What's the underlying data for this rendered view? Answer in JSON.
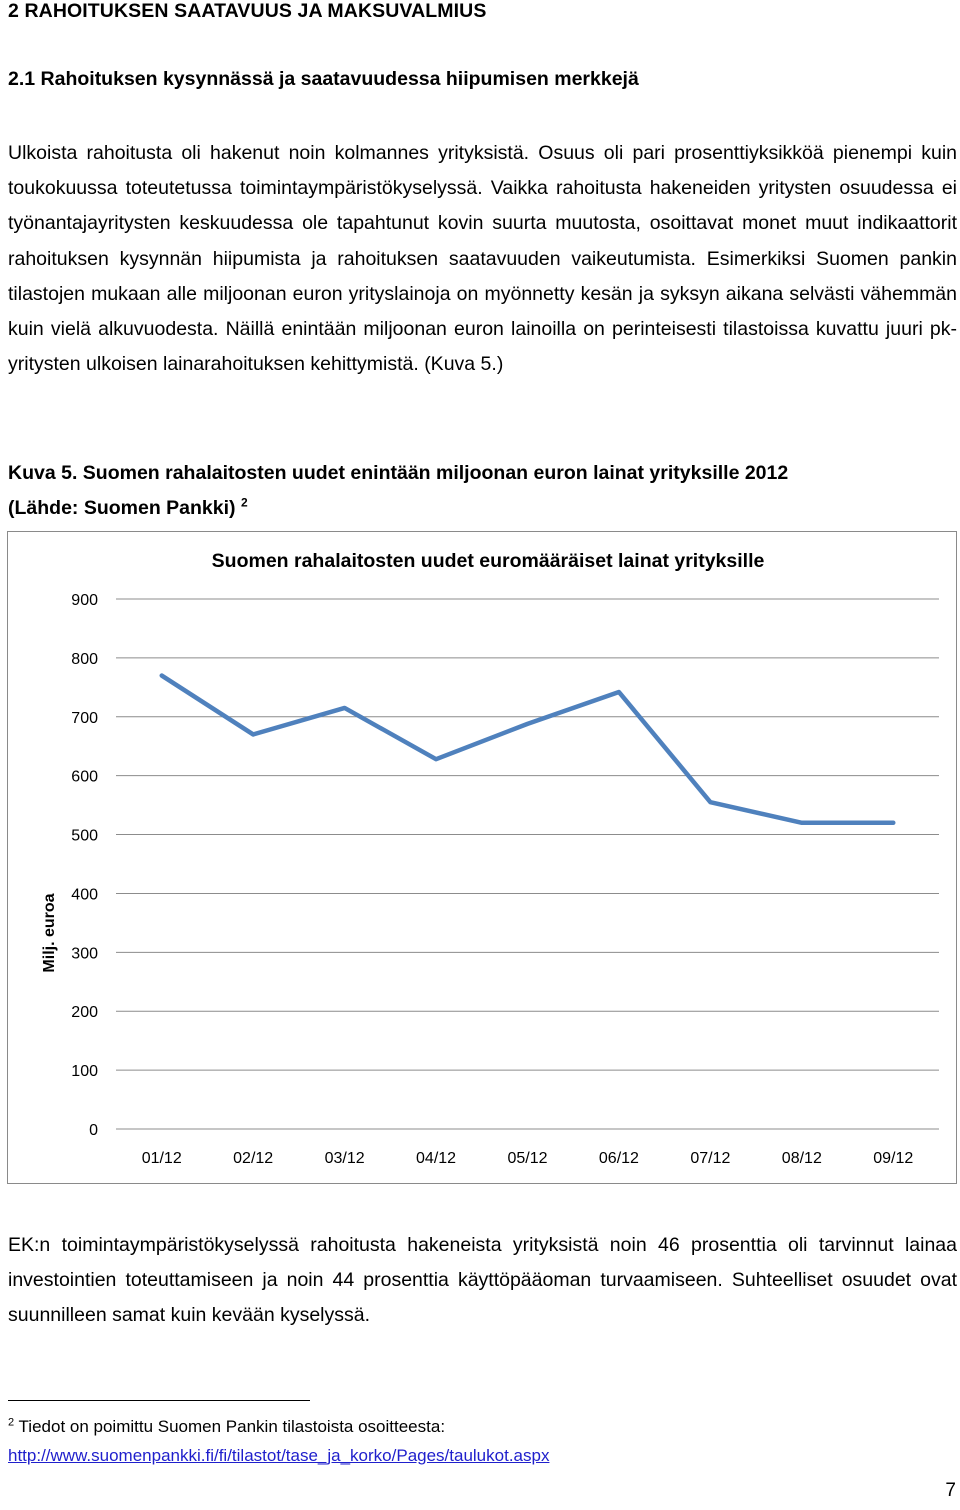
{
  "section_title": "2 RAHOITUKSEN SAATAVUUS JA MAKSUVALMIUS",
  "subsection_title": "2.1 Rahoituksen kysynnässä ja saatavuudessa hiipumisen merkkejä",
  "paragraph_1": "Ulkoista rahoitusta oli hakenut noin kolmannes yrityksistä. Osuus oli pari prosenttiyksikköä pienempi kuin toukokuussa toteutetussa toimintaympäristökyselyssä. Vaikka rahoitusta hakeneiden yritysten osuudessa ei työnantajayritysten keskuudessa ole tapahtunut kovin suurta muutosta, osoittavat monet muut indikaattorit rahoituksen kysynnän hiipumista ja rahoituksen saatavuuden vaikeutumista. Esimerkiksi Suomen pankin tilastojen mukaan alle miljoonan euron yrityslainoja on myönnetty kesän ja syksyn aikana selvästi vähemmän kuin vielä alkuvuodesta. Näillä enintään miljoonan euron lainoilla on perinteisesti tilastoissa kuvattu juuri pk-yritysten ulkoisen lainarahoituksen kehittymistä. (Kuva 5.)",
  "figure_caption": {
    "line1": "Kuva 5. Suomen rahalaitosten uudet enintään miljoonan euron lainat yrityksille 2012",
    "line2": "(Lähde: Suomen Pankki)",
    "footnote_ref": "2"
  },
  "chart_data": {
    "type": "line",
    "title": "Suomen rahalaitosten uudet euromääräiset lainat yrityksille",
    "ylabel": "Milj. euroa",
    "xlabel": "",
    "categories": [
      "01/12",
      "02/12",
      "03/12",
      "04/12",
      "05/12",
      "06/12",
      "07/12",
      "08/12",
      "09/12"
    ],
    "series": [
      {
        "values": [
          770,
          670,
          715,
          628,
          688,
          742,
          555,
          520,
          520
        ],
        "color": "#4f81bd"
      }
    ],
    "ylim": [
      0,
      900
    ],
    "yticks": [
      "0",
      "100",
      "200",
      "300",
      "400",
      "500",
      "600",
      "700",
      "800",
      "900"
    ],
    "grid": true,
    "legend": "none"
  },
  "paragraph_2": "EK:n toimintaympäristökyselyssä rahoitusta hakeneista yrityksistä noin 46 prosenttia oli tarvinnut lainaa investointien toteuttamiseen ja noin 44 prosenttia käyttöpääoman turvaamiseen. Suhteelliset osuudet ovat suunnilleen samat kuin kevään kyselyssä.",
  "footnote": {
    "number": "2",
    "text": "Tiedot on poimittu Suomen Pankin tilastoista osoitteesta:",
    "link": "http://www.suomenpankki.fi/fi/tilastot/tase_ja_korko/Pages/taulukot.aspx"
  },
  "page_number": "7"
}
